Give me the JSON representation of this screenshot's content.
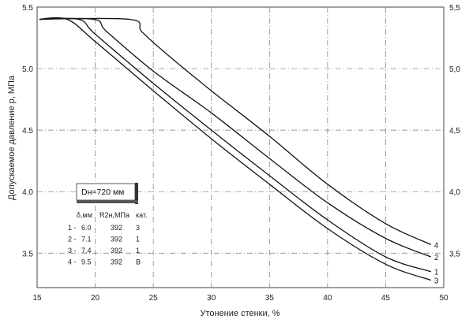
{
  "chart_data": {
    "type": "line",
    "title": "",
    "xlabel": "Утонение стенки, %",
    "ylabel": "Допускаемое давление p, МПа",
    "xlim": [
      15,
      50
    ],
    "ylim": [
      3.22,
      5.5
    ],
    "xticks": [
      "15",
      "20",
      "25",
      "30",
      "35",
      "40",
      "45",
      "50"
    ],
    "yticks": [
      "5,5",
      "5,0",
      "4,5",
      "4,0",
      "3,5"
    ],
    "yticks_left": [
      "5.5",
      "5.0",
      "4.5",
      "4.0",
      "3.5"
    ],
    "yticks_right": [
      "5,5",
      "5,0",
      "4,5",
      "4,0",
      "3,5"
    ],
    "series": [
      {
        "name": "1",
        "points": [
          [
            15.2,
            5.4
          ],
          [
            18.6,
            5.4
          ],
          [
            20,
            5.28
          ],
          [
            25,
            4.88
          ],
          [
            30,
            4.5
          ],
          [
            35,
            4.13
          ],
          [
            40,
            3.77
          ],
          [
            45,
            3.47
          ],
          [
            48.9,
            3.35
          ]
        ]
      },
      {
        "name": "2",
        "points": [
          [
            15.2,
            5.4
          ],
          [
            19.9,
            5.4
          ],
          [
            21,
            5.3
          ],
          [
            25,
            4.98
          ],
          [
            30,
            4.64
          ],
          [
            35,
            4.27
          ],
          [
            40,
            3.91
          ],
          [
            45,
            3.62
          ],
          [
            48.9,
            3.47
          ]
        ]
      },
      {
        "name": "3",
        "points": [
          [
            15.2,
            5.4
          ],
          [
            17.6,
            5.4
          ],
          [
            20,
            5.22
          ],
          [
            25,
            4.82
          ],
          [
            30,
            4.43
          ],
          [
            35,
            4.06
          ],
          [
            40,
            3.7
          ],
          [
            45,
            3.41
          ],
          [
            48.9,
            3.28
          ]
        ]
      },
      {
        "name": "4",
        "points": [
          [
            15.2,
            5.4
          ],
          [
            23.0,
            5.4
          ],
          [
            24,
            5.3
          ],
          [
            26,
            5.13
          ],
          [
            30,
            4.82
          ],
          [
            35,
            4.45
          ],
          [
            40,
            4.06
          ],
          [
            45,
            3.74
          ],
          [
            48.9,
            3.57
          ]
        ]
      }
    ],
    "grid": true,
    "legend": {
      "title": "Dн=720 мм",
      "headers": [
        "δ,мм",
        "R2н,МПа",
        "кат."
      ],
      "rows": [
        [
          "1 -",
          "6.0",
          "392",
          "3"
        ],
        [
          "2 -",
          "7.1",
          "392",
          "1"
        ],
        [
          "3 -",
          "7.4",
          "392",
          "1"
        ],
        [
          "4 -",
          "9.5",
          "392",
          "B"
        ]
      ],
      "placement": "lower-left"
    }
  }
}
